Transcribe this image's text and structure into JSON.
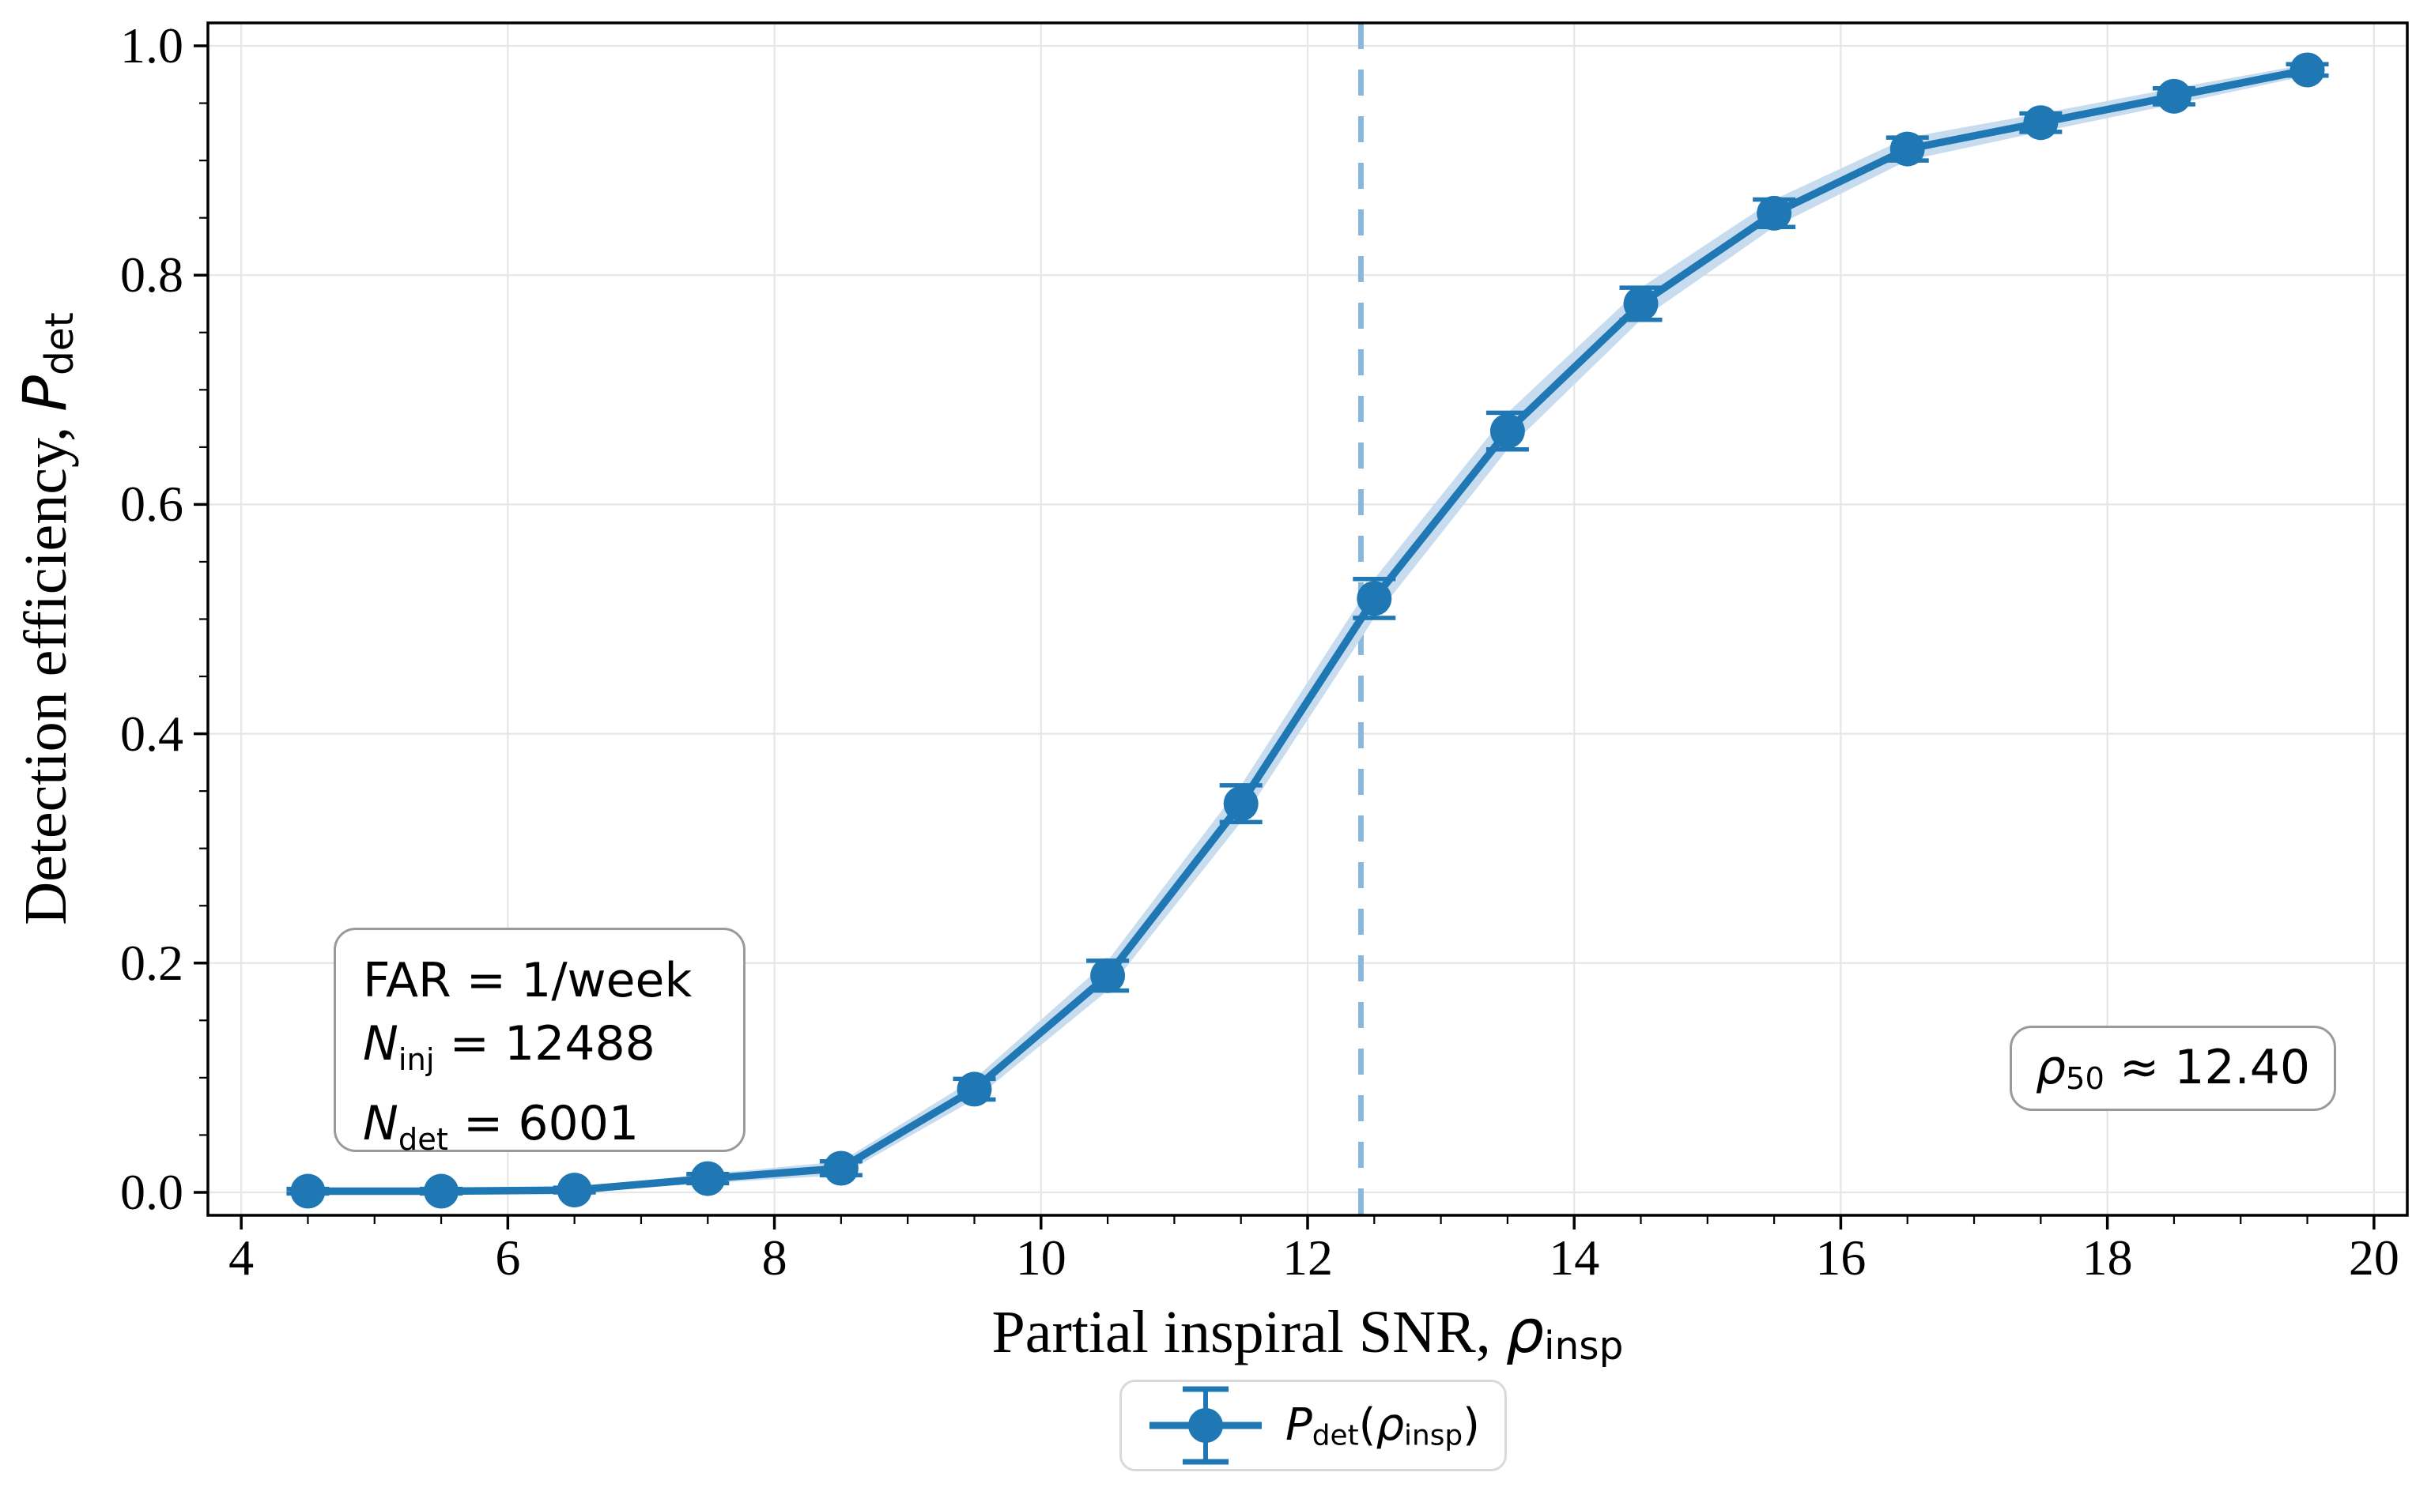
{
  "colors": {
    "accent": "#1f77b4",
    "band": "#c7ddef",
    "vline": "#8ab8dc",
    "grid": "#e6e6e6",
    "spine": "#000000",
    "box_border": "#9a9a9a",
    "legend_border": "#d9d9d9"
  },
  "yaxis": {
    "label_text": "Detection efficiency, ",
    "label_math": "P",
    "label_sub": "det"
  },
  "xaxis": {
    "label_text": "Partial inspiral SNR, ",
    "label_math": "ρ",
    "label_sub": "insp"
  },
  "info_box": {
    "line1": "FAR = 1/week",
    "line2_var": "N",
    "line2_sub": "inj",
    "line2_rest": " = 12488",
    "line3_var": "N",
    "line3_sub": "det",
    "line3_rest": " = 6001"
  },
  "rho_box": {
    "var": "ρ",
    "sub": "50",
    "rest": " ≈ 12.40"
  },
  "legend": {
    "var": "P",
    "sub": "det",
    "paren_open": "(",
    "rho": "ρ",
    "rho_sub": "insp",
    "paren_close": ")"
  },
  "chart_data": {
    "type": "line",
    "title": "",
    "xlabel": "Partial inspiral SNR, rho_insp",
    "ylabel": "Detection efficiency, P_det",
    "xlim": [
      3.75,
      20.25
    ],
    "ylim": [
      -0.02,
      1.02
    ],
    "x_major_ticks": [
      4,
      6,
      8,
      10,
      12,
      14,
      16,
      18,
      20
    ],
    "x_tick_labels": [
      "4",
      "6",
      "8",
      "10",
      "12",
      "14",
      "16",
      "18",
      "20"
    ],
    "y_major_ticks": [
      0.0,
      0.2,
      0.4,
      0.6,
      0.8,
      1.0
    ],
    "y_tick_labels": [
      "0.0",
      "0.2",
      "0.4",
      "0.6",
      "0.8",
      "1.0"
    ],
    "x_minor_step": 0.5,
    "y_minor_step": 0.05,
    "grid": "major-both",
    "legend_position": "below-axes",
    "series": [
      {
        "name": "P_det(rho_insp)",
        "x": [
          4.5,
          5.5,
          6.5,
          7.5,
          8.5,
          9.5,
          10.5,
          11.5,
          12.5,
          13.5,
          14.5,
          15.5,
          16.5,
          17.5,
          18.5,
          19.5
        ],
        "y": [
          0.001,
          0.001,
          0.002,
          0.012,
          0.021,
          0.09,
          0.189,
          0.339,
          0.518,
          0.664,
          0.775,
          0.854,
          0.91,
          0.933,
          0.956,
          0.979
        ],
        "yerr": [
          0.002,
          0.002,
          0.002,
          0.004,
          0.006,
          0.009,
          0.013,
          0.016,
          0.017,
          0.016,
          0.014,
          0.012,
          0.01,
          0.008,
          0.007,
          0.005
        ]
      }
    ],
    "vline": {
      "x": 12.4,
      "label": "rho_50 ≈ 12.40"
    },
    "annotations": [
      "FAR = 1/week",
      "N_inj = 12488",
      "N_det = 6001",
      "rho_50 ≈ 12.40"
    ],
    "stats": {
      "FAR": "1/week",
      "N_inj": 12488,
      "N_det": 6001,
      "rho_50": 12.4
    }
  }
}
